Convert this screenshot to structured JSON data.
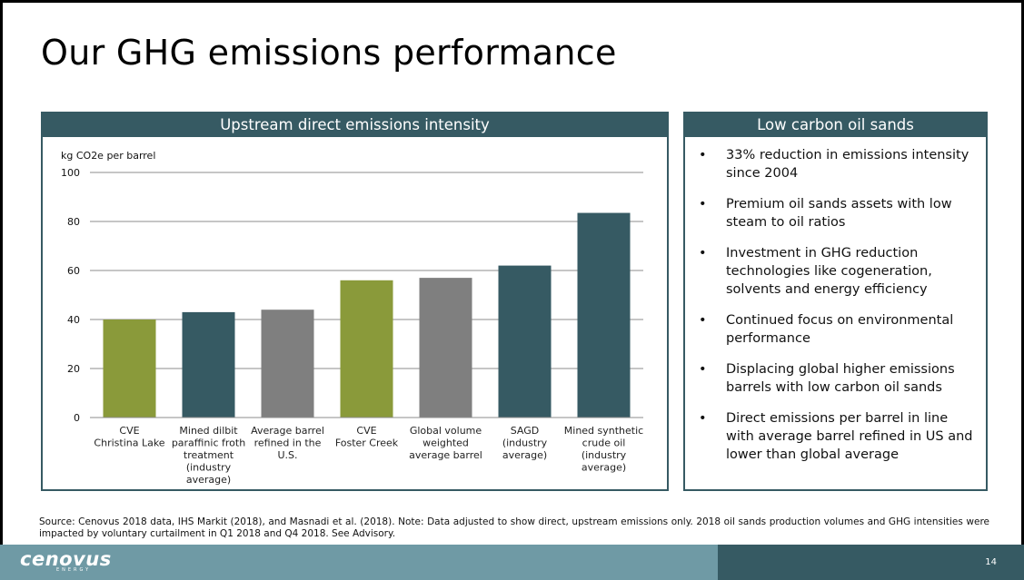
{
  "slide": {
    "title": "Our GHG emissions performance",
    "page_number": "14"
  },
  "chart_panel": {
    "header": "Upstream direct emissions intensity"
  },
  "chart_data": {
    "type": "bar",
    "title": "Upstream direct emissions intensity",
    "ylabel": "kg CO2e per barrel",
    "xlabel": "",
    "ylim": [
      0,
      100
    ],
    "yticks": [
      0,
      20,
      40,
      60,
      80,
      100
    ],
    "grid": true,
    "categories": [
      [
        "CVE",
        "Christina Lake"
      ],
      [
        "Mined dilbit",
        "paraffinic froth",
        "treatment",
        "(industry",
        "average)"
      ],
      [
        "Average barrel",
        "refined in the",
        "U.S."
      ],
      [
        "CVE",
        "Foster Creek"
      ],
      [
        "Global volume",
        "weighted",
        "average barrel"
      ],
      [
        "SAGD",
        "(industry",
        "average)"
      ],
      [
        "Mined synthetic",
        "crude oil",
        "(industry",
        "average)"
      ]
    ],
    "values": [
      40,
      43,
      44,
      56,
      57,
      62,
      83.5
    ],
    "bar_colors": [
      "#8a9a3a",
      "#365a63",
      "#7f7f7f",
      "#8a9a3a",
      "#7f7f7f",
      "#365a63",
      "#365a63"
    ]
  },
  "bullet_panel": {
    "header": "Low carbon oil sands",
    "bullet_symbol": "•",
    "items": [
      "33% reduction in emissions intensity since 2004",
      "Premium oil sands assets with low steam to oil ratios",
      "Investment in GHG reduction technologies like cogeneration, solvents and energy efficiency",
      "Continued focus on environmental performance",
      "Displacing global higher emissions barrels with low carbon oil sands",
      "Direct emissions per barrel in line with average barrel refined in US and lower than global average"
    ]
  },
  "footnote": "Source: Cenovus 2018 data, IHS Markit (2018), and Masnadi et al. (2018). Note: Data adjusted to show direct, upstream emissions only. 2018 oil sands production volumes and GHG intensities were impacted by voluntary curtailment in Q1 2018 and Q4 2018. See Advisory.",
  "footer": {
    "logo_text": "cenovus",
    "logo_subtext": "ENERGY"
  }
}
